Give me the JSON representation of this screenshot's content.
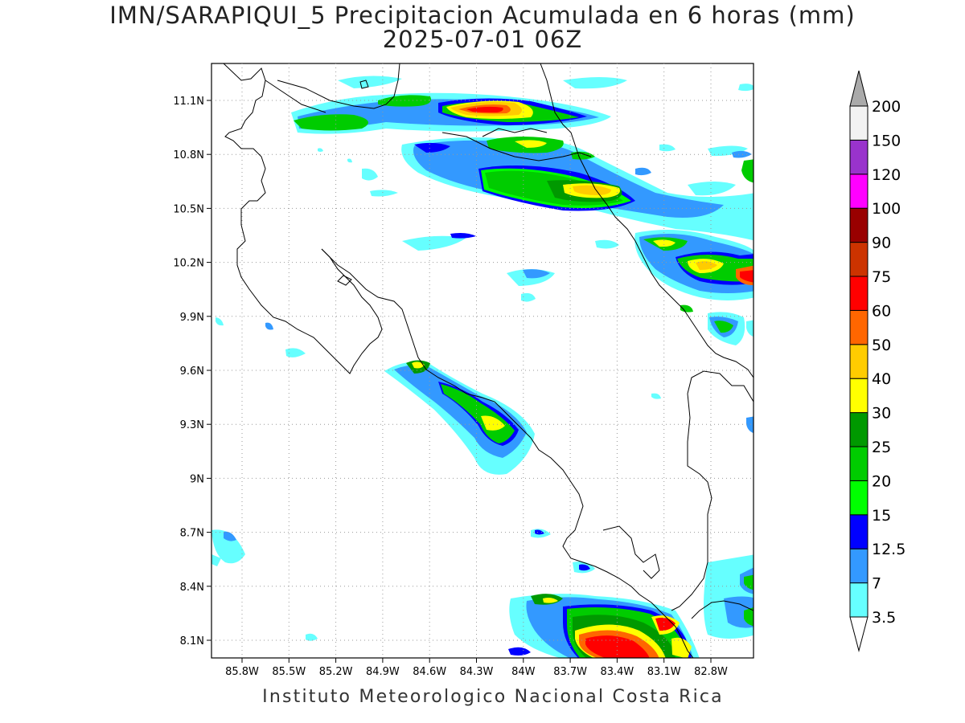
{
  "title_line1": "IMN/SARAPIQUI_5 Precipitacion Acumulada en 6 horas (mm)",
  "title_line2": "2025-07-01 06Z",
  "footer": "Instituto Meteorologico Nacional Costa Rica",
  "map": {
    "lon_range": [
      -86.0,
      -82.6
    ],
    "lat_range": [
      8.0,
      11.3
    ],
    "x_ticks": [
      "85.8W",
      "85.5W",
      "85.2W",
      "84.9W",
      "84.6W",
      "84.3W",
      "84W",
      "83.7W",
      "83.4W",
      "83.1W",
      "82.8W"
    ],
    "y_ticks": [
      "11.1N",
      "10.8N",
      "10.5N",
      "10.2N",
      "9.9N",
      "9.6N",
      "9.3N",
      "9N",
      "8.7N",
      "8.4N",
      "8.1N"
    ],
    "grid": "dotted"
  },
  "colorbar": {
    "levels": [
      {
        "label": "3.5",
        "color": "#66ffff"
      },
      {
        "label": "7",
        "color": "#3399ff"
      },
      {
        "label": "12.5",
        "color": "#0000ff"
      },
      {
        "label": "15",
        "color": "#00ff00"
      },
      {
        "label": "20",
        "color": "#00cc00"
      },
      {
        "label": "25",
        "color": "#009900"
      },
      {
        "label": "30",
        "color": "#ffff00"
      },
      {
        "label": "40",
        "color": "#ffcc00"
      },
      {
        "label": "50",
        "color": "#ff6600"
      },
      {
        "label": "60",
        "color": "#ff0000"
      },
      {
        "label": "75",
        "color": "#cc3300"
      },
      {
        "label": "90",
        "color": "#990000"
      },
      {
        "label": "100",
        "color": "#ff00ff"
      },
      {
        "label": "120",
        "color": "#9933cc"
      },
      {
        "label": "150",
        "color": "#f2f2f2"
      },
      {
        "label": "200",
        "color": "#aaaaaa"
      }
    ]
  }
}
